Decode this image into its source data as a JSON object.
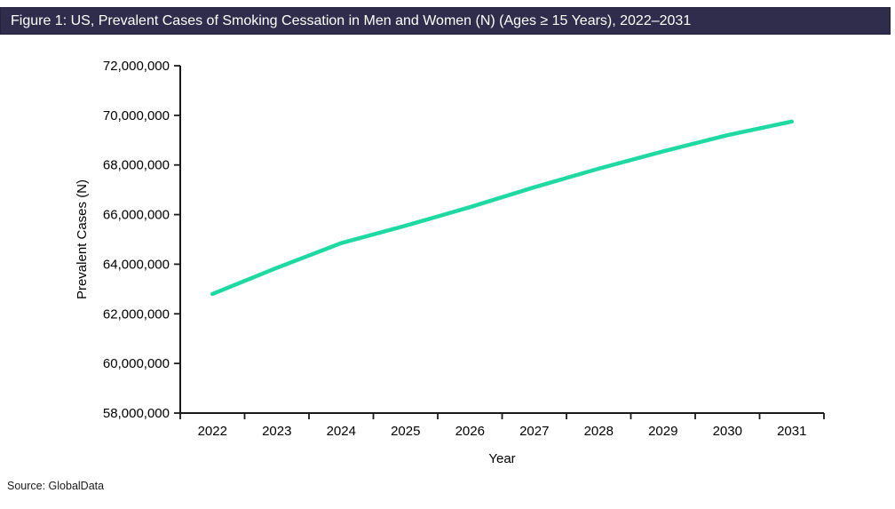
{
  "figure": {
    "title": "Figure 1: US, Prevalent Cases of Smoking Cessation in Men and Women (N) (Ages ≥ 15 Years), 2022–2031",
    "source": "Source: GlobalData"
  },
  "colors": {
    "title_bar_bg": "#302C4C",
    "title_text": "#FFFFFF",
    "series_line": "#1FD9A3",
    "axis": "#1A1A1A",
    "tick_label": "#000000"
  },
  "chart_data": {
    "type": "line",
    "title": "US, Prevalent Cases of Smoking Cessation in Men and Women (N), Ages ≥ 15 Years",
    "categories": [
      "2022",
      "2023",
      "2024",
      "2025",
      "2026",
      "2027",
      "2028",
      "2029",
      "2030",
      "2031"
    ],
    "series": [
      {
        "name": "Prevalent Cases of Smoking Cessation",
        "values": [
          62800000,
          63850000,
          64850000,
          65550000,
          66300000,
          67100000,
          67850000,
          68550000,
          69200000,
          69750000
        ]
      }
    ],
    "xlabel": "Year",
    "ylabel": "Prevalent Cases (N)",
    "ylim": [
      58000000,
      72000000
    ],
    "ytick_step": 2000000,
    "ytick_labels": [
      "58,000,000",
      "60,000,000",
      "62,000,000",
      "64,000,000",
      "66,000,000",
      "68,000,000",
      "70,000,000",
      "72,000,000"
    ],
    "grid": false,
    "legend": "none"
  }
}
